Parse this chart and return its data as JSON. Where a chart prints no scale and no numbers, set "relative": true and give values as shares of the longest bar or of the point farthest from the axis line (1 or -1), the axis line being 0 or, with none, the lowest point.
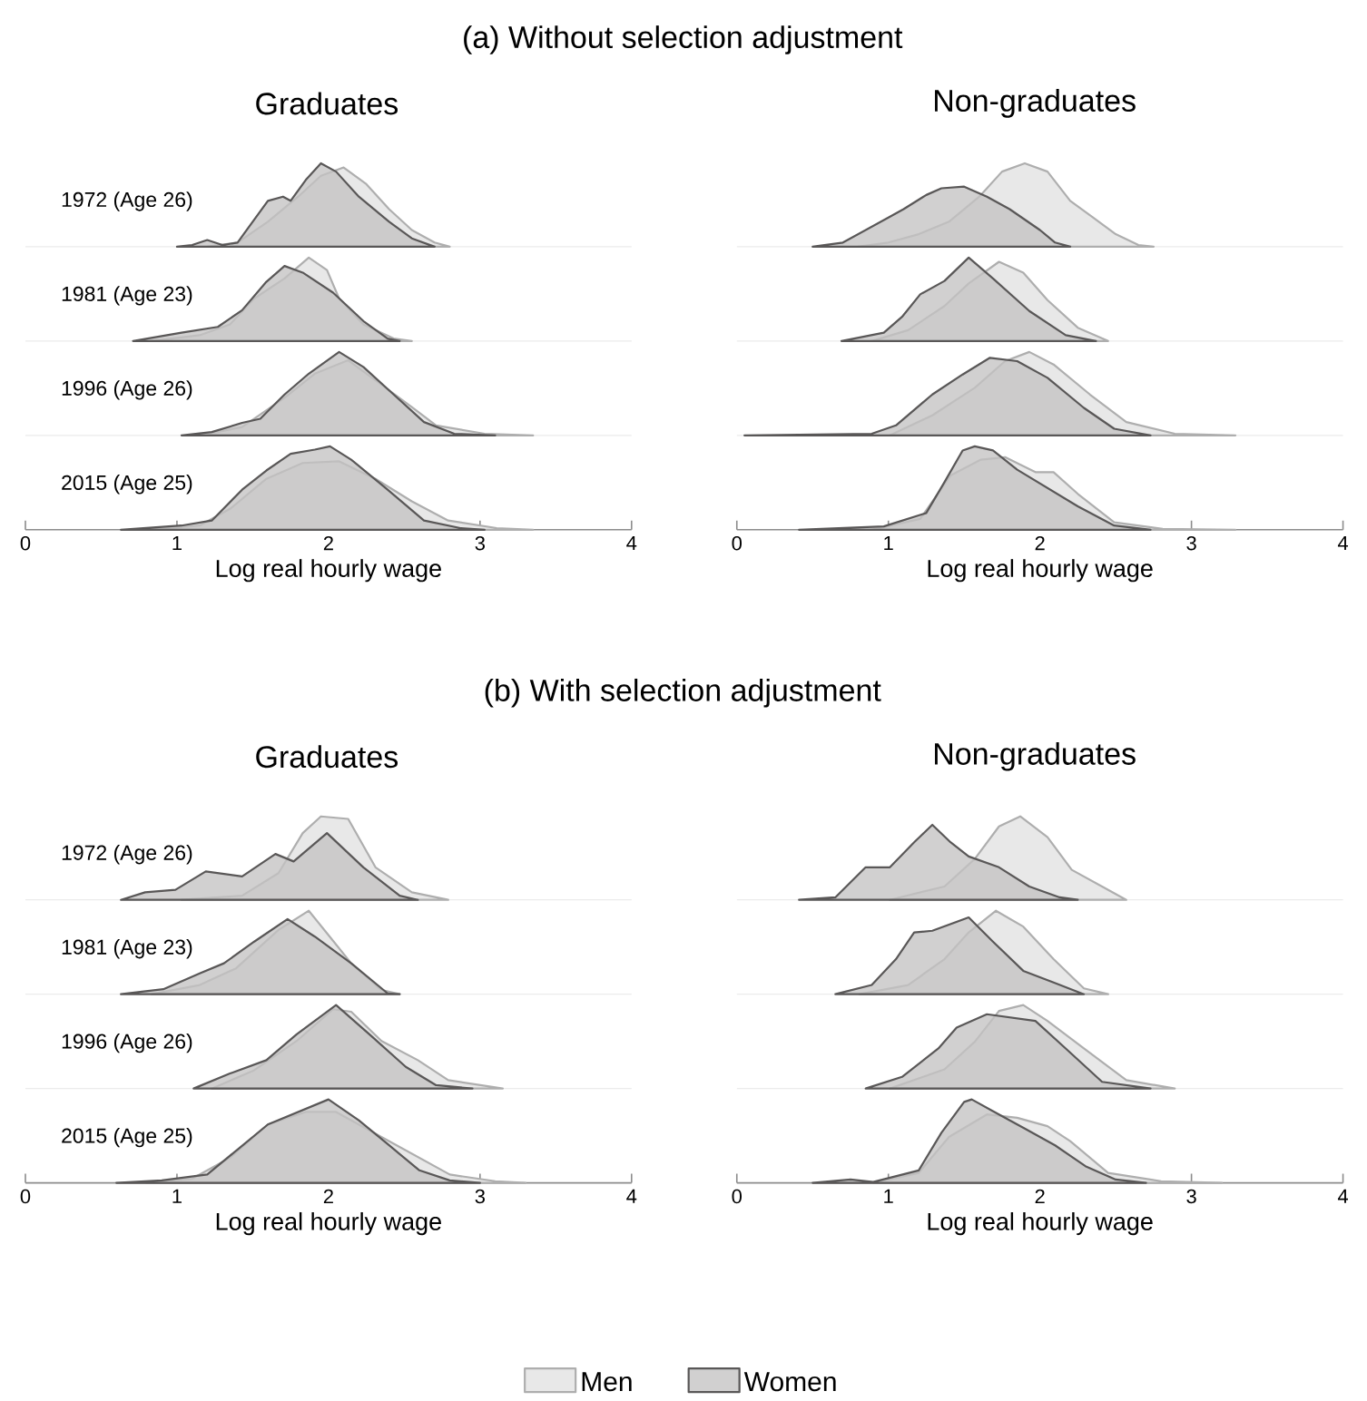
{
  "chart_data": [
    {
      "type": "area",
      "title": "(a) Without selection adjustment",
      "subtitle": "Graduates",
      "ylabel": "1972 (Age 26)",
      "relative": true,
      "xlim": [
        0,
        4
      ],
      "tick_labels": false,
      "series": [
        {
          "color": "#e8e8e8",
          "x": [
            1.2,
            1.4,
            1.6,
            1.8,
            1.95,
            2.1,
            2.25,
            2.4,
            2.55,
            2.7,
            2.8
          ],
          "values": [
            0,
            0.05,
            0.3,
            0.6,
            0.85,
            0.95,
            0.75,
            0.45,
            0.2,
            0.05,
            0
          ]
        },
        {
          "color": "#c4c3c3",
          "x": [
            1.0,
            1.1,
            1.2,
            1.3,
            1.4,
            1.5,
            1.6,
            1.7,
            1.75,
            1.85,
            1.95,
            2.05,
            2.2,
            2.4,
            2.55,
            2.7
          ],
          "values": [
            0,
            0.02,
            0.08,
            0.02,
            0.05,
            0.3,
            0.55,
            0.6,
            0.55,
            0.8,
            1.0,
            0.9,
            0.6,
            0.3,
            0.1,
            0
          ]
        }
      ]
    },
    {
      "type": "area",
      "ylabel": "1981 (Age 23)",
      "relative": true,
      "xlim": [
        0,
        4
      ],
      "tick_labels": false,
      "series": [
        {
          "color": "#e8e8e8",
          "x": [
            0.83,
            1.15,
            1.35,
            1.51,
            1.71,
            1.87,
            1.99,
            2.07,
            2.23,
            2.43,
            2.55
          ],
          "values": [
            0,
            0.07,
            0.2,
            0.51,
            0.75,
            1.0,
            0.85,
            0.51,
            0.2,
            0.03,
            0
          ]
        },
        {
          "color": "#c4c3c3",
          "x": [
            0.71,
            1.03,
            1.27,
            1.43,
            1.59,
            1.71,
            1.83,
            2.03,
            2.23,
            2.39,
            2.47
          ],
          "values": [
            0,
            0.1,
            0.17,
            0.37,
            0.71,
            0.9,
            0.82,
            0.58,
            0.24,
            0.03,
            0
          ]
        }
      ]
    },
    {
      "type": "area",
      "ylabel": "1996 (Age 26)",
      "relative": true,
      "xlim": [
        0,
        4
      ],
      "tick_labels": false,
      "series": [
        {
          "color": "#e8e8e8",
          "x": [
            1.15,
            1.43,
            1.71,
            1.91,
            2.13,
            2.31,
            2.55,
            2.71,
            3.03,
            3.35
          ],
          "values": [
            0,
            0.1,
            0.45,
            0.74,
            0.9,
            0.66,
            0.34,
            0.12,
            0.02,
            0
          ]
        },
        {
          "color": "#c4c3c3",
          "x": [
            1.03,
            1.23,
            1.43,
            1.55,
            1.71,
            1.87,
            2.07,
            2.23,
            2.43,
            2.63,
            2.83,
            3.1
          ],
          "values": [
            0,
            0.04,
            0.15,
            0.2,
            0.49,
            0.74,
            1.0,
            0.82,
            0.49,
            0.16,
            0.02,
            0
          ]
        }
      ]
    },
    {
      "type": "area",
      "ylabel": "2015 (Age 25)",
      "xlabel": "Log real hourly wage",
      "relative": true,
      "xlim": [
        0,
        4
      ],
      "xticks": [
        0,
        1,
        2,
        3,
        4
      ],
      "tick_labels": "x",
      "series": [
        {
          "color": "#e8e8e8",
          "x": [
            0.83,
            1.15,
            1.35,
            1.59,
            1.83,
            2.07,
            2.31,
            2.55,
            2.79,
            3.11,
            3.35
          ],
          "values": [
            0,
            0.05,
            0.25,
            0.61,
            0.8,
            0.82,
            0.61,
            0.34,
            0.11,
            0.02,
            0
          ]
        },
        {
          "color": "#c4c3c3",
          "x": [
            0.63,
            1.03,
            1.23,
            1.43,
            1.59,
            1.75,
            1.91,
            2.01,
            2.15,
            2.39,
            2.63,
            2.87,
            3.03
          ],
          "values": [
            0,
            0.05,
            0.11,
            0.48,
            0.71,
            0.91,
            0.96,
            1.0,
            0.84,
            0.48,
            0.11,
            0.02,
            0
          ]
        }
      ]
    },
    {
      "type": "area",
      "subtitle": "Non-graduates",
      "relative": true,
      "xlim": [
        0,
        4
      ],
      "tick_labels": false,
      "series": [
        {
          "color": "#e8e8e8",
          "x": [
            0.8,
            1.0,
            1.2,
            1.4,
            1.6,
            1.75,
            1.9,
            2.05,
            2.2,
            2.35,
            2.5,
            2.65,
            2.75
          ],
          "values": [
            0,
            0.05,
            0.15,
            0.3,
            0.6,
            0.9,
            1.0,
            0.9,
            0.55,
            0.35,
            0.15,
            0.02,
            0
          ]
        },
        {
          "color": "#c4c3c3",
          "x": [
            0.5,
            0.7,
            0.85,
            1.0,
            1.1,
            1.25,
            1.35,
            1.5,
            1.65,
            1.8,
            2.0,
            2.1,
            2.2
          ],
          "values": [
            0,
            0.05,
            0.2,
            0.35,
            0.45,
            0.62,
            0.7,
            0.72,
            0.6,
            0.45,
            0.2,
            0.05,
            0
          ]
        }
      ]
    },
    {
      "type": "area",
      "relative": true,
      "xlim": [
        0,
        4
      ],
      "tick_labels": false,
      "series": [
        {
          "color": "#e8e8e8",
          "x": [
            0.89,
            1.13,
            1.37,
            1.53,
            1.73,
            1.89,
            2.05,
            2.25,
            2.45
          ],
          "values": [
            0,
            0.13,
            0.42,
            0.69,
            0.95,
            0.82,
            0.49,
            0.16,
            0
          ]
        },
        {
          "color": "#c4c3c3",
          "x": [
            0.69,
            0.97,
            1.09,
            1.21,
            1.37,
            1.53,
            1.69,
            1.93,
            2.17,
            2.37
          ],
          "values": [
            0,
            0.1,
            0.29,
            0.56,
            0.72,
            1.0,
            0.75,
            0.36,
            0.07,
            0
          ]
        }
      ]
    },
    {
      "type": "area",
      "relative": true,
      "xlim": [
        0,
        4
      ],
      "tick_labels": false,
      "series": [
        {
          "color": "#e8e8e8",
          "x": [
            1.01,
            1.29,
            1.57,
            1.77,
            1.93,
            2.09,
            2.33,
            2.57,
            2.89,
            3.29
          ],
          "values": [
            0,
            0.24,
            0.57,
            0.89,
            1.0,
            0.85,
            0.49,
            0.16,
            0.02,
            0
          ]
        },
        {
          "color": "#c4c3c3",
          "x": [
            0.05,
            0.89,
            1.05,
            1.29,
            1.49,
            1.67,
            1.85,
            2.05,
            2.29,
            2.49,
            2.73
          ],
          "values": [
            0,
            0.02,
            0.12,
            0.49,
            0.73,
            0.93,
            0.89,
            0.69,
            0.33,
            0.08,
            0
          ]
        }
      ]
    },
    {
      "type": "area",
      "xlabel": "Log real hourly wage",
      "relative": true,
      "xlim": [
        0,
        4
      ],
      "xticks": [
        0,
        1,
        2,
        3,
        4
      ],
      "tick_labels": "x",
      "series": [
        {
          "color": "#e8e8e8",
          "x": [
            0.89,
            1.21,
            1.41,
            1.61,
            1.77,
            1.97,
            2.09,
            2.25,
            2.49,
            2.81,
            3.29
          ],
          "values": [
            0,
            0.13,
            0.65,
            0.84,
            0.87,
            0.69,
            0.69,
            0.43,
            0.09,
            0.01,
            0
          ]
        },
        {
          "color": "#c4c3c3",
          "x": [
            0.41,
            0.97,
            1.25,
            1.37,
            1.49,
            1.57,
            1.69,
            1.85,
            2.05,
            2.25,
            2.49,
            2.73
          ],
          "values": [
            0,
            0.04,
            0.2,
            0.57,
            0.95,
            1.0,
            0.95,
            0.72,
            0.5,
            0.28,
            0.05,
            0
          ]
        }
      ]
    },
    {
      "type": "area",
      "title": "(b) With selection adjustment",
      "subtitle": "Graduates",
      "ylabel": "1972 (Age 26)",
      "relative": true,
      "xlim": [
        0,
        4
      ],
      "tick_labels": false,
      "series": [
        {
          "color": "#e8e8e8",
          "x": [
            1.03,
            1.43,
            1.67,
            1.83,
            1.95,
            2.13,
            2.31,
            2.55,
            2.79
          ],
          "values": [
            0,
            0.05,
            0.32,
            0.8,
            1.0,
            0.97,
            0.39,
            0.09,
            0
          ]
        },
        {
          "color": "#c4c3c3",
          "x": [
            0.63,
            0.79,
            0.99,
            1.19,
            1.43,
            1.65,
            1.77,
            1.99,
            2.23,
            2.47,
            2.59
          ],
          "values": [
            0,
            0.09,
            0.12,
            0.34,
            0.28,
            0.55,
            0.46,
            0.8,
            0.39,
            0.05,
            0
          ]
        }
      ]
    },
    {
      "type": "area",
      "ylabel": "1981 (Age 23)",
      "relative": true,
      "xlim": [
        0,
        4
      ],
      "tick_labels": false,
      "series": [
        {
          "color": "#e8e8e8",
          "x": [
            0.83,
            1.15,
            1.39,
            1.67,
            1.87,
            1.99,
            2.15,
            2.35,
            2.47
          ],
          "values": [
            0,
            0.11,
            0.31,
            0.77,
            1.0,
            0.73,
            0.37,
            0.05,
            0
          ]
        },
        {
          "color": "#c4c3c3",
          "x": [
            0.63,
            0.91,
            1.15,
            1.31,
            1.51,
            1.73,
            1.91,
            2.15,
            2.39,
            2.47
          ],
          "values": [
            0,
            0.06,
            0.25,
            0.37,
            0.63,
            0.9,
            0.69,
            0.37,
            0.01,
            0
          ]
        }
      ]
    },
    {
      "type": "area",
      "ylabel": "1996 (Age 26)",
      "relative": true,
      "xlim": [
        0,
        4
      ],
      "tick_labels": false,
      "series": [
        {
          "color": "#e8e8e8",
          "x": [
            1.23,
            1.51,
            1.79,
            2.03,
            2.15,
            2.35,
            2.59,
            2.79,
            3.15
          ],
          "values": [
            0,
            0.22,
            0.57,
            0.95,
            0.92,
            0.57,
            0.34,
            0.1,
            0
          ]
        },
        {
          "color": "#c4c3c3",
          "x": [
            1.11,
            1.35,
            1.59,
            1.79,
            2.05,
            2.27,
            2.51,
            2.71,
            2.95
          ],
          "values": [
            0,
            0.18,
            0.34,
            0.65,
            1.0,
            0.65,
            0.26,
            0.04,
            0
          ]
        }
      ]
    },
    {
      "type": "area",
      "ylabel": "2015 (Age 25)",
      "xlabel": "Log real hourly wage",
      "relative": true,
      "xlim": [
        0,
        4
      ],
      "xticks": [
        0,
        1,
        2,
        3,
        4
      ],
      "tick_labels": "x",
      "series": [
        {
          "color": "#e8e8e8",
          "x": [
            0.8,
            1.1,
            1.35,
            1.6,
            1.85,
            2.05,
            2.3,
            2.55,
            2.8,
            3.1,
            3.3
          ],
          "values": [
            0,
            0.05,
            0.3,
            0.7,
            0.85,
            0.85,
            0.6,
            0.35,
            0.1,
            0.02,
            0
          ]
        },
        {
          "color": "#c4c3c3",
          "x": [
            0.6,
            0.9,
            1.2,
            1.4,
            1.6,
            1.8,
            2.0,
            2.2,
            2.4,
            2.6,
            2.8,
            3.0
          ],
          "values": [
            0,
            0.03,
            0.1,
            0.4,
            0.7,
            0.85,
            1.0,
            0.75,
            0.45,
            0.15,
            0.03,
            0
          ]
        }
      ]
    },
    {
      "type": "area",
      "subtitle": "Non-graduates",
      "relative": true,
      "xlim": [
        0,
        4
      ],
      "tick_labels": false,
      "series": [
        {
          "color": "#e8e8e8",
          "x": [
            1.01,
            1.37,
            1.57,
            1.73,
            1.87,
            2.05,
            2.21,
            2.41,
            2.57
          ],
          "values": [
            0,
            0.16,
            0.49,
            0.88,
            1.0,
            0.75,
            0.36,
            0.16,
            0
          ]
        },
        {
          "color": "#c4c3c3",
          "x": [
            0.41,
            0.65,
            0.85,
            1.01,
            1.17,
            1.29,
            1.41,
            1.53,
            1.73,
            1.93,
            2.13,
            2.25
          ],
          "values": [
            0,
            0.03,
            0.39,
            0.39,
            0.69,
            0.9,
            0.69,
            0.52,
            0.39,
            0.16,
            0.03,
            0
          ]
        }
      ]
    },
    {
      "type": "area",
      "relative": true,
      "xlim": [
        0,
        4
      ],
      "tick_labels": false,
      "series": [
        {
          "color": "#e8e8e8",
          "x": [
            0.81,
            1.13,
            1.37,
            1.53,
            1.71,
            1.89,
            2.09,
            2.29,
            2.45
          ],
          "values": [
            0,
            0.11,
            0.42,
            0.74,
            1.0,
            0.81,
            0.42,
            0.07,
            0
          ]
        },
        {
          "color": "#c4c3c3",
          "x": [
            0.65,
            0.89,
            1.05,
            1.17,
            1.29,
            1.53,
            1.69,
            1.89,
            2.09,
            2.29
          ],
          "values": [
            0,
            0.11,
            0.42,
            0.74,
            0.76,
            0.92,
            0.63,
            0.28,
            0.14,
            0
          ]
        }
      ]
    },
    {
      "type": "area",
      "relative": true,
      "xlim": [
        0,
        4
      ],
      "tick_labels": false,
      "series": [
        {
          "color": "#e8e8e8",
          "x": [
            1.01,
            1.37,
            1.57,
            1.73,
            1.89,
            2.05,
            2.29,
            2.57,
            2.89
          ],
          "values": [
            0,
            0.23,
            0.56,
            0.93,
            1.0,
            0.81,
            0.48,
            0.1,
            0
          ]
        },
        {
          "color": "#c4c3c3",
          "x": [
            0.85,
            1.09,
            1.33,
            1.45,
            1.65,
            1.97,
            2.17,
            2.41,
            2.73
          ],
          "values": [
            0,
            0.14,
            0.48,
            0.73,
            0.89,
            0.81,
            0.48,
            0.08,
            0
          ]
        }
      ]
    },
    {
      "type": "area",
      "xlabel": "Log real hourly wage",
      "relative": true,
      "xlim": [
        0,
        4
      ],
      "xticks": [
        0,
        1,
        2,
        3,
        4
      ],
      "tick_labels": "x",
      "legend": "bottom",
      "series": [
        {
          "name": "Men",
          "color": "#e8e8e8",
          "x": [
            0.9,
            1.2,
            1.4,
            1.65,
            1.85,
            2.05,
            2.2,
            2.45,
            2.8,
            3.2
          ],
          "values": [
            0,
            0.12,
            0.55,
            0.82,
            0.78,
            0.68,
            0.5,
            0.12,
            0.02,
            0
          ]
        },
        {
          "name": "Women",
          "color": "#c4c3c3",
          "x": [
            0.5,
            0.75,
            0.9,
            1.2,
            1.35,
            1.5,
            1.55,
            1.7,
            1.9,
            2.1,
            2.3,
            2.5,
            2.7
          ],
          "values": [
            0,
            0.04,
            0.01,
            0.15,
            0.6,
            0.97,
            1.0,
            0.85,
            0.65,
            0.45,
            0.2,
            0.04,
            0
          ]
        }
      ]
    }
  ]
}
